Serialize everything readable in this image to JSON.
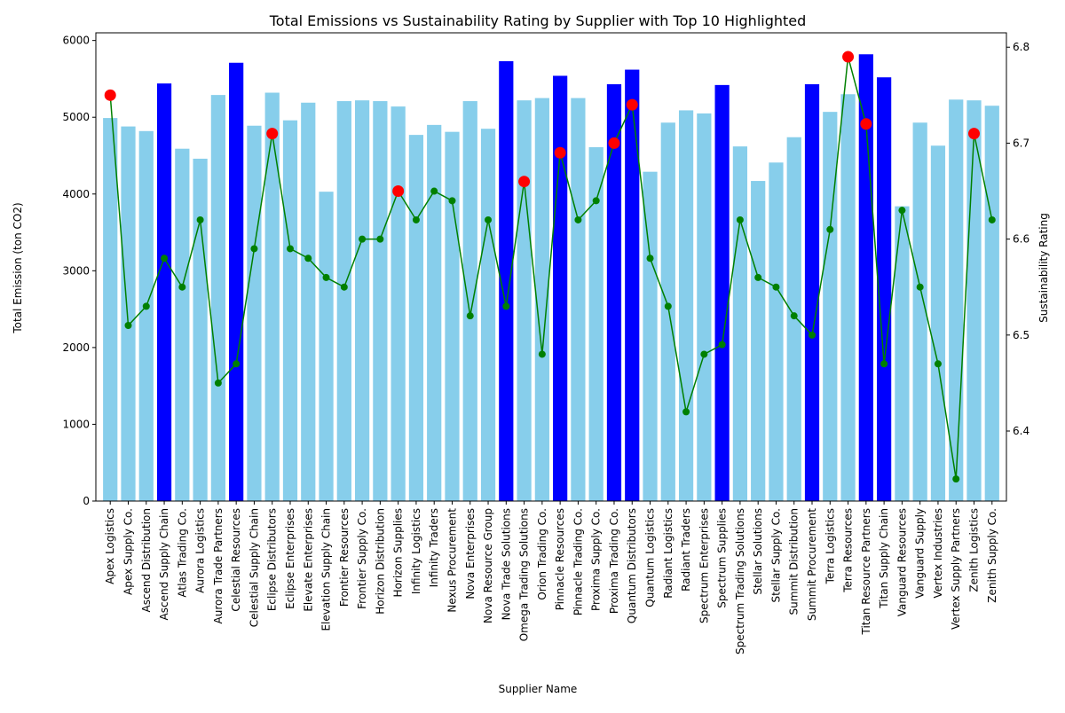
{
  "chart_data": {
    "type": "bar",
    "title": "Total Emissions vs Sustainability Rating by Supplier with Top 10 Highlighted",
    "xlabel": "Supplier Name",
    "ylabel": "Total Emission (ton CO2)",
    "y2label": "Sustainability Rating",
    "ylim": [
      0,
      6100
    ],
    "y2lim": [
      6.327,
      6.815
    ],
    "yticks": [
      0,
      1000,
      2000,
      3000,
      4000,
      5000,
      6000
    ],
    "y2ticks": [
      6.4,
      6.5,
      6.6,
      6.7,
      6.8
    ],
    "grid": false,
    "colors": {
      "bar": "#87ceeb",
      "bar_top10": "#0000ff",
      "line": "#008000",
      "marker_top10": "#ff0000"
    },
    "categories": [
      "Apex Logistics",
      "Apex Supply Co.",
      "Ascend Distribution",
      "Ascend Supply Chain",
      "Atlas Trading Co.",
      "Aurora Logistics",
      "Aurora Trade Partners",
      "Celestial Resources",
      "Celestial Supply Chain",
      "Eclipse Distributors",
      "Eclipse Enterprises",
      "Elevate Enterprises",
      "Elevation Supply Chain",
      "Frontier Resources",
      "Frontier Supply Co.",
      "Horizon Distribution",
      "Horizon Supplies",
      "Infinity Logistics",
      "Infinity Traders",
      "Nexus Procurement",
      "Nova Enterprises",
      "Nova Resource Group",
      "Nova Trade Solutions",
      "Omega Trading Solutions",
      "Orion Trading Co.",
      "Pinnacle Resources",
      "Pinnacle Trading Co.",
      "Proxima Supply Co.",
      "Proxima Trading Co.",
      "Quantum Distributors",
      "Quantum Logistics",
      "Radiant Logistics",
      "Radiant Traders",
      "Spectrum Enterprises",
      "Spectrum Supplies",
      "Spectrum Trading Solutions",
      "Stellar Solutions",
      "Stellar Supply Co.",
      "Summit Distribution",
      "Summit Procurement",
      "Terra Logistics",
      "Terra Resources",
      "Titan Resource Partners",
      "Titan Supply Chain",
      "Vanguard Resources",
      "Vanguard Supply",
      "Vertex Industries",
      "Vertex Supply Partners",
      "Zenith Logistics",
      "Zenith Supply Co."
    ],
    "series": [
      {
        "kind": "bar",
        "values": [
          4990,
          4880,
          4820,
          5440,
          4590,
          4460,
          5290,
          5710,
          4890,
          5320,
          4960,
          5190,
          4030,
          5210,
          5220,
          5210,
          5140,
          4770,
          4900,
          4810,
          5210,
          4850,
          5730,
          5220,
          5250,
          5540,
          5250,
          4610,
          5430,
          5620,
          4290,
          4930,
          5090,
          5050,
          5420,
          4620,
          4170,
          4410,
          4740,
          5430,
          5070,
          5300,
          5820,
          5520,
          3840,
          4930,
          4630,
          5230,
          5220,
          5150
        ],
        "top10": [
          3,
          7,
          22,
          25,
          28,
          29,
          34,
          39,
          42,
          43
        ]
      },
      {
        "kind": "line",
        "axis": "right",
        "values": [
          6.75,
          6.51,
          6.53,
          6.58,
          6.55,
          6.62,
          6.45,
          6.47,
          6.59,
          6.71,
          6.59,
          6.58,
          6.56,
          6.55,
          6.6,
          6.6,
          6.65,
          6.62,
          6.65,
          6.64,
          6.52,
          6.62,
          6.53,
          6.66,
          6.48,
          6.69,
          6.62,
          6.64,
          6.7,
          6.74,
          6.58,
          6.53,
          6.42,
          6.48,
          6.49,
          6.62,
          6.56,
          6.55,
          6.52,
          6.5,
          6.61,
          6.79,
          6.72,
          6.47,
          6.63,
          6.55,
          6.47,
          6.35,
          6.71,
          6.62
        ],
        "top10": [
          0,
          9,
          16,
          23,
          25,
          28,
          29,
          41,
          42,
          48
        ]
      }
    ]
  }
}
